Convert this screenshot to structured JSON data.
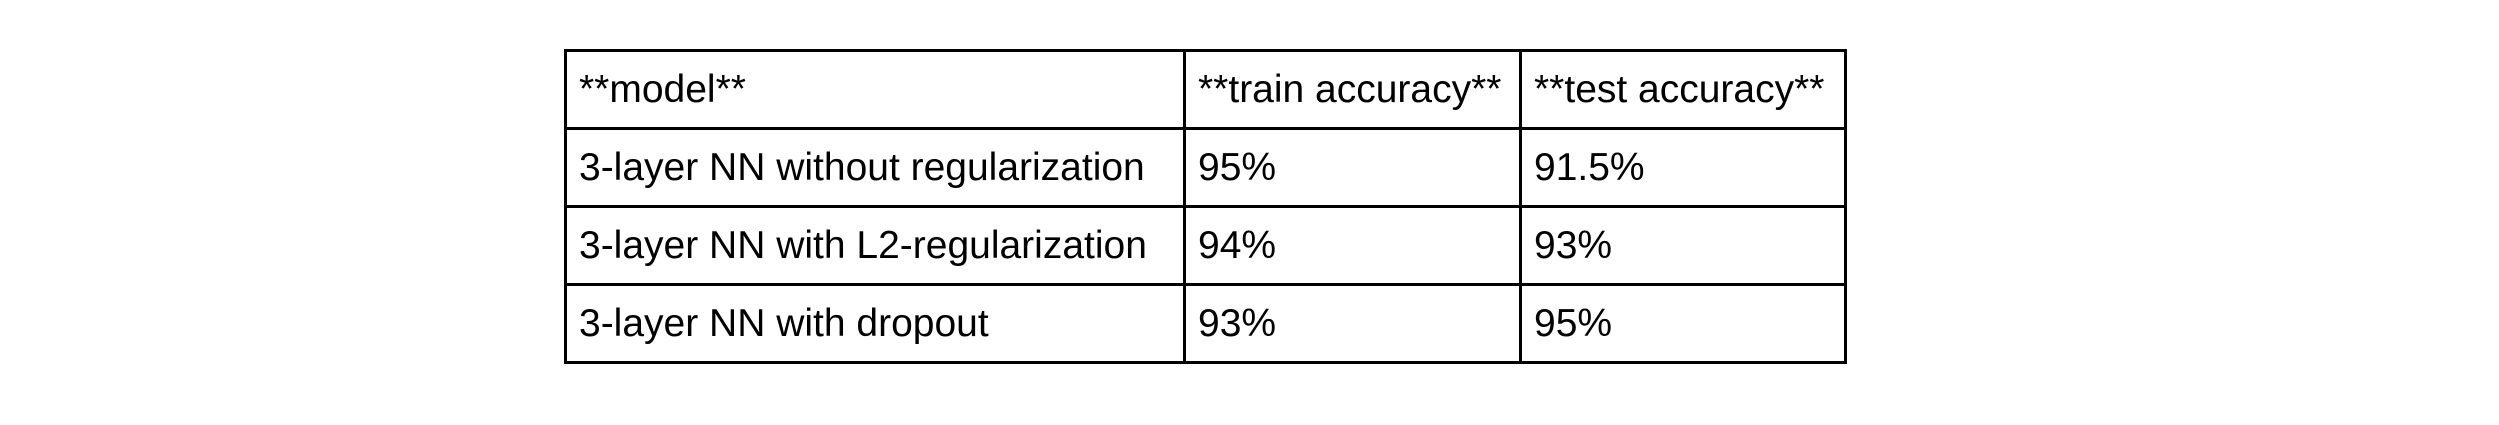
{
  "table": {
    "headers": [
      "**model**",
      "**train accuracy**",
      "**test accuracy**"
    ],
    "rows": [
      [
        "3-layer NN without regularization",
        "95%",
        "91.5%"
      ],
      [
        "3-layer NN with L2-regularization",
        "94%",
        "93%"
      ],
      [
        "3-layer NN with dropout",
        "93%",
        "95%"
      ]
    ]
  },
  "chart_data": {
    "type": "table",
    "columns": [
      "**model**",
      "**train accuracy**",
      "**test accuracy**"
    ],
    "rows": [
      {
        "model": "3-layer NN without regularization",
        "train_accuracy": "95%",
        "test_accuracy": "91.5%"
      },
      {
        "model": "3-layer NN with L2-regularization",
        "train_accuracy": "94%",
        "test_accuracy": "93%"
      },
      {
        "model": "3-layer NN with dropout",
        "train_accuracy": "93%",
        "test_accuracy": "95%"
      }
    ]
  }
}
